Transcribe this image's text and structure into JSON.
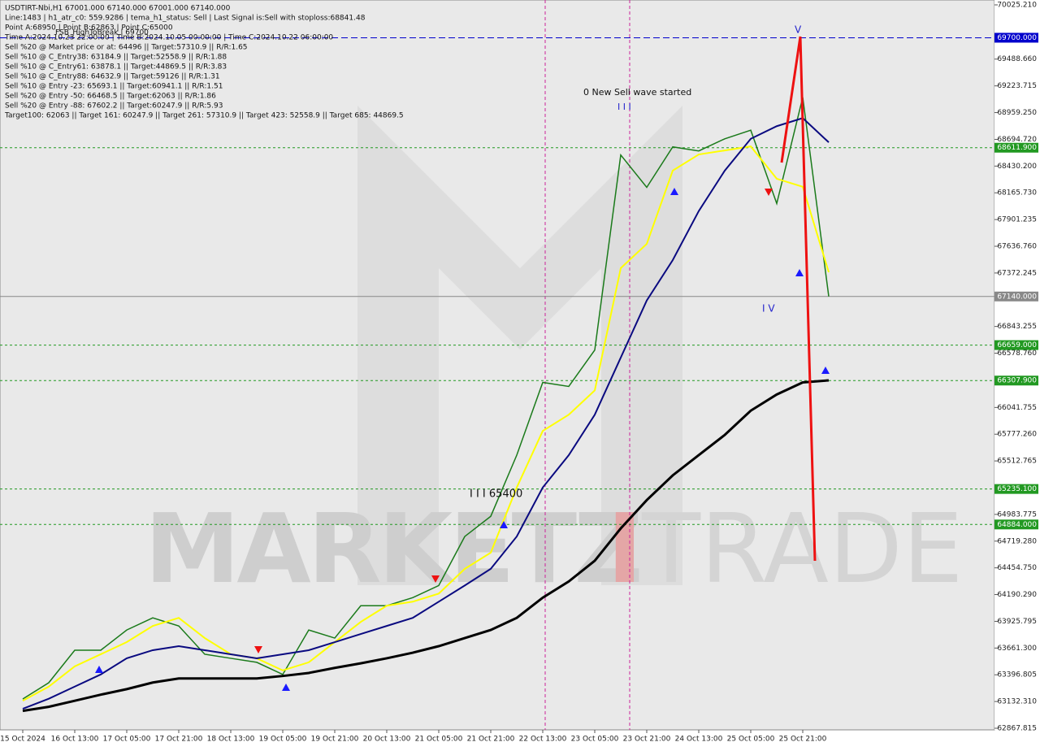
{
  "chart_data": {
    "type": "line",
    "title": "USDTIRT-Nbi,H1  67001.000 67140.000 67001.000 67140.000",
    "info_lines": [
      "Line:1483 | h1_atr_c0: 559.9286 | tema_h1_status: Sell | Last Signal is:Sell with stoploss:68841.48",
      "Point A:68950 | Point B:62863 | Point C:65000",
      "Time A:2024.10.23 22:00:00 | Time B:2024.10.05 00:00:00 | Time C:2024.10.22 06:00:00",
      "Sell %20 @ Market price or at: 64496 || Target:57310.9 || R/R:1.65",
      "Sell %10 @ C_Entry38: 63184.9 || Target:52558.9 || R/R:1.88",
      "Sell %10 @ C_Entry61: 63878.1 || Target:44869.5 || R/R:3.83",
      "Sell %10 @ C_Entry88: 64632.9 || Target:59126 || R/R:1.31",
      "Sell %10 @ Entry -23: 65693.1 || Target:60941.1 || R/R:1.51",
      "Sell %20 @ Entry -50: 66468.5 || Target:62063 || R/R:1.86",
      "Sell %20 @ Entry -88: 67602.2 || Target:60247.9 || R/R:5.93",
      "Target100: 62063 || Target 161: 60247.9 || Target 261: 57310.9 || Target 423: 52558.9 || Target 685: 44869.5"
    ],
    "break_label": "FSB_HighToBreak | 69700",
    "annotations": [
      "0 New Sell wave started",
      "I I I",
      "I I I 65400",
      "I V",
      "V"
    ],
    "watermark": [
      "MARKETZ",
      "I",
      "TRADE"
    ],
    "categories": [
      "15 Oct 2024",
      null,
      "16 Oct 13:00",
      null,
      "17 Oct 05:00",
      null,
      "17 Oct 21:00",
      null,
      "18 Oct 13:00",
      null,
      "19 Oct 05:00",
      null,
      "19 Oct 21:00",
      null,
      "20 Oct 13:00",
      null,
      "21 Oct 05:00",
      null,
      "21 Oct 21:00",
      null,
      "22 Oct 13:00",
      null,
      "23 Oct 05:00",
      null,
      "23 Oct 21:00",
      null,
      "24 Oct 13:00",
      null,
      "25 Oct 05:00",
      null,
      "25 Oct 21:00",
      null
    ],
    "series": [
      {
        "name": "Price",
        "color": "#1a7a1a",
        "values": [
          63157,
          63318,
          63640,
          63640,
          63840,
          63960,
          63880,
          63600,
          63560,
          63520,
          63400,
          63840,
          63760,
          64080,
          64080,
          64160,
          64280,
          64765,
          64965,
          65570,
          66290,
          66250,
          66610,
          68540,
          68220,
          68620,
          68580,
          68700,
          68785,
          68060,
          69110,
          67140
        ]
      },
      {
        "name": "MA fast",
        "color": "#ffff00",
        "values": [
          63140,
          63280,
          63480,
          63600,
          63720,
          63880,
          63960,
          63760,
          63600,
          63560,
          63440,
          63520,
          63720,
          63920,
          64080,
          64120,
          64200,
          64445,
          64605,
          65250,
          65810,
          65970,
          66210,
          67420,
          67660,
          68385,
          68545,
          68585,
          68625,
          68305,
          68225,
          67380
        ]
      },
      {
        "name": "MA mid",
        "color": "#0a0a80",
        "values": [
          63060,
          63160,
          63280,
          63400,
          63560,
          63640,
          63680,
          63640,
          63600,
          63560,
          63600,
          63640,
          63720,
          63800,
          63880,
          63960,
          64120,
          64280,
          64445,
          64765,
          65250,
          65570,
          65970,
          66535,
          67100,
          67500,
          67985,
          68385,
          68700,
          68825,
          68905,
          68665
        ]
      },
      {
        "name": "MA 200",
        "color": "#000000",
        "values": [
          63040,
          63080,
          63140,
          63200,
          63255,
          63320,
          63360,
          63360,
          63360,
          63360,
          63385,
          63415,
          63465,
          63510,
          63560,
          63615,
          63680,
          63760,
          63840,
          63960,
          64160,
          64320,
          64525,
          64845,
          65125,
          65370,
          65570,
          65770,
          66010,
          66170,
          66290,
          66310
        ]
      }
    ],
    "ylim": [
      62867.815,
      70025.21
    ],
    "yticks": [
      {
        "value": 70025.21,
        "label": "70025.210"
      },
      {
        "value": 69488.66,
        "label": "69488.660"
      },
      {
        "value": 69223.715,
        "label": "69223.715"
      },
      {
        "value": 68959.25,
        "label": "68959.250"
      },
      {
        "value": 68694.72,
        "label": "68694.720"
      },
      {
        "value": 68430.2,
        "label": "68430.200"
      },
      {
        "value": 68165.73,
        "label": "68165.730"
      },
      {
        "value": 67901.235,
        "label": "67901.235"
      },
      {
        "value": 67636.76,
        "label": "67636.760"
      },
      {
        "value": 67372.245,
        "label": "67372.245"
      },
      {
        "value": 66843.255,
        "label": "66843.255"
      },
      {
        "value": 66578.76,
        "label": "66578.760"
      },
      {
        "value": 66041.755,
        "label": "66041.755"
      },
      {
        "value": 65777.26,
        "label": "65777.260"
      },
      {
        "value": 65512.765,
        "label": "65512.765"
      },
      {
        "value": 64983.775,
        "label": "64983.775"
      },
      {
        "value": 64719.28,
        "label": "64719.280"
      },
      {
        "value": 64454.75,
        "label": "64454.750"
      },
      {
        "value": 64190.29,
        "label": "64190.290"
      },
      {
        "value": 63925.795,
        "label": "63925.795"
      },
      {
        "value": 63661.3,
        "label": "63661.300"
      },
      {
        "value": 63396.805,
        "label": "63396.805"
      },
      {
        "value": 63132.31,
        "label": "63132.310"
      },
      {
        "value": 62867.815,
        "label": "62867.815"
      }
    ],
    "levels": [
      {
        "value": 69700,
        "label": "69700.000",
        "color": "#0000cc"
      },
      {
        "value": 68611.9,
        "label": "68611.900",
        "color": "#229922"
      },
      {
        "value": 67140,
        "label": "67140.000",
        "color": "#888888"
      },
      {
        "value": 66659,
        "label": "66659.000",
        "color": "#229922"
      },
      {
        "value": 66307.9,
        "label": "66307.900",
        "color": "#229922"
      },
      {
        "value": 65235.1,
        "label": "65235.100",
        "color": "#229922"
      },
      {
        "value": 64884,
        "label": "64884.000",
        "color": "#229922"
      }
    ]
  }
}
